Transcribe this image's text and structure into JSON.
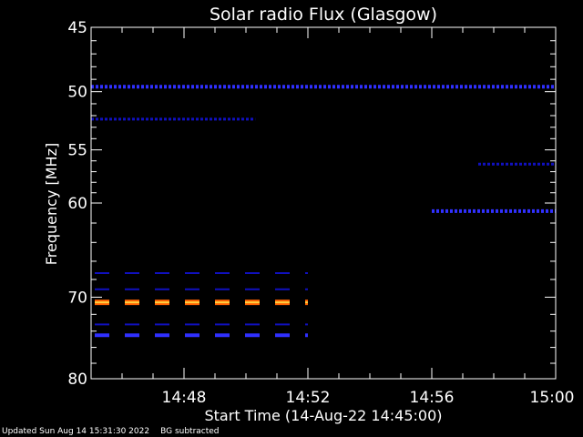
{
  "chart_data": {
    "type": "heatmap",
    "title": "Solar radio Flux (Glasgow)",
    "xlabel": "Start Time (14-Aug-22 14:45:00)",
    "ylabel": "Frequency [MHz]",
    "x_range": [
      "14:45:00",
      "15:00:00"
    ],
    "y_range": [
      45,
      80
    ],
    "y_ticks": [
      "45",
      "50",
      "55",
      "60",
      "70",
      "80"
    ],
    "y_tick_values": [
      45,
      50,
      55,
      60,
      70,
      80
    ],
    "x_ticks": [
      "14:48",
      "14:52",
      "14:56",
      "15:00"
    ],
    "x_tick_values_min": [
      3,
      7,
      11,
      15
    ],
    "colors": {
      "background": "#000000",
      "axes": "#ffffff",
      "low": "#1010c0",
      "mid": "#3030ff",
      "hot": "#ff6000",
      "hotter": "#ffd040"
    },
    "bands": [
      {
        "freq": 49.6,
        "t_start": 0.0,
        "t_end": 15.0,
        "intensity": "mid",
        "style": "dotted"
      },
      {
        "freq": 52.3,
        "t_start": 0.0,
        "t_end": 5.3,
        "intensity": "low",
        "style": "dotted"
      },
      {
        "freq": 56.3,
        "t_start": 12.5,
        "t_end": 15.0,
        "intensity": "low",
        "style": "dotted"
      },
      {
        "freq": 60.8,
        "t_start": 11.0,
        "t_end": 15.0,
        "intensity": "mid",
        "style": "dotted"
      },
      {
        "freq": 67.3,
        "t_start": 0.0,
        "t_end": 7.0,
        "intensity": "low",
        "style": "dashed"
      },
      {
        "freq": 69.1,
        "t_start": 0.0,
        "t_end": 7.0,
        "intensity": "low",
        "style": "dashed"
      },
      {
        "freq": 70.6,
        "t_start": 0.0,
        "t_end": 7.0,
        "intensity": "hot",
        "style": "dashed"
      },
      {
        "freq": 73.2,
        "t_start": 0.0,
        "t_end": 7.0,
        "intensity": "low",
        "style": "dashed"
      },
      {
        "freq": 74.5,
        "t_start": 0.0,
        "t_end": 7.0,
        "intensity": "mid",
        "style": "dashed"
      }
    ]
  },
  "footer": {
    "updated": "Updated Sun Aug 14 15:31:30 2022",
    "note": "BG subtracted"
  }
}
